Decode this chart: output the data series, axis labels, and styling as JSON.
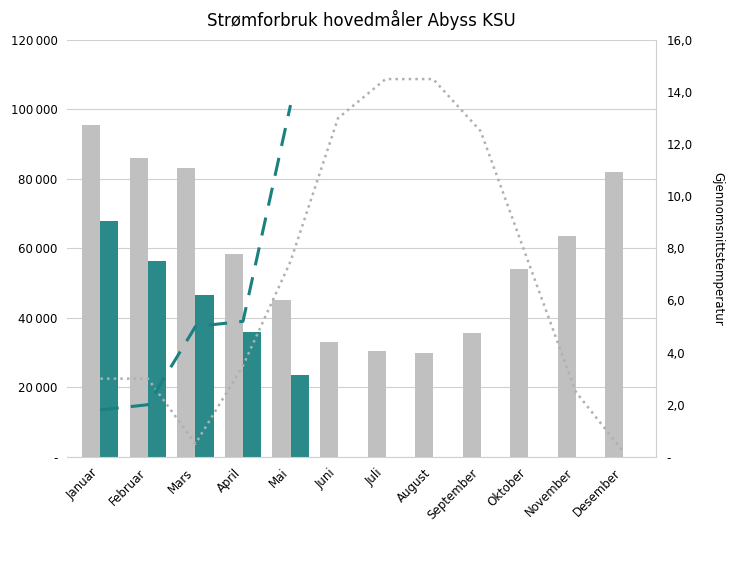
{
  "title": "Strømforbruk hovedmåler Abyss KSU",
  "months": [
    "Januar",
    "Februar",
    "Mars",
    "April",
    "Mai",
    "Juni",
    "Juli",
    "August",
    "September",
    "Oktober",
    "November",
    "Desember"
  ],
  "forbruk_23": [
    95500,
    86000,
    83000,
    58500,
    45000,
    33000,
    30500,
    30000,
    35500,
    54000,
    63500,
    82000
  ],
  "forbruk_24": [
    68000,
    56500,
    46500,
    36000,
    23500,
    null,
    null,
    null,
    null,
    null,
    null,
    null
  ],
  "snitt_2023": [
    3.0,
    3.0,
    0.5,
    3.5,
    7.5,
    13.0,
    14.5,
    14.5,
    12.5,
    7.5,
    2.5,
    0.2
  ],
  "snitt_2024": [
    1.8,
    2.0,
    5.0,
    5.2,
    13.5,
    null,
    null,
    null,
    null,
    null,
    null,
    null
  ],
  "bar_color_23": "#c0c0c0",
  "bar_color_24": "#2a8a8a",
  "line_color_23": "#b0b0b0",
  "line_color_24": "#1a8080",
  "ylabel_right": "Gjennomsnittstemperatur",
  "ylim_left": [
    0,
    120000
  ],
  "ylim_right": [
    0,
    16
  ],
  "yticks_left": [
    0,
    20000,
    40000,
    60000,
    80000,
    100000,
    120000
  ],
  "ytick_labels_left": [
    "-",
    "20 000",
    "40 000",
    "60 000",
    "80 000",
    "100 000",
    "120 000"
  ],
  "yticks_right": [
    0,
    2,
    4,
    6,
    8,
    10,
    12,
    14,
    16
  ],
  "ytick_labels_right": [
    "-",
    "2,0",
    "4,0",
    "6,0",
    "8,0",
    "10,0",
    "12,0",
    "14,0",
    "16,0"
  ],
  "background_color": "#ffffff",
  "grid_color": "#d0d0d0"
}
